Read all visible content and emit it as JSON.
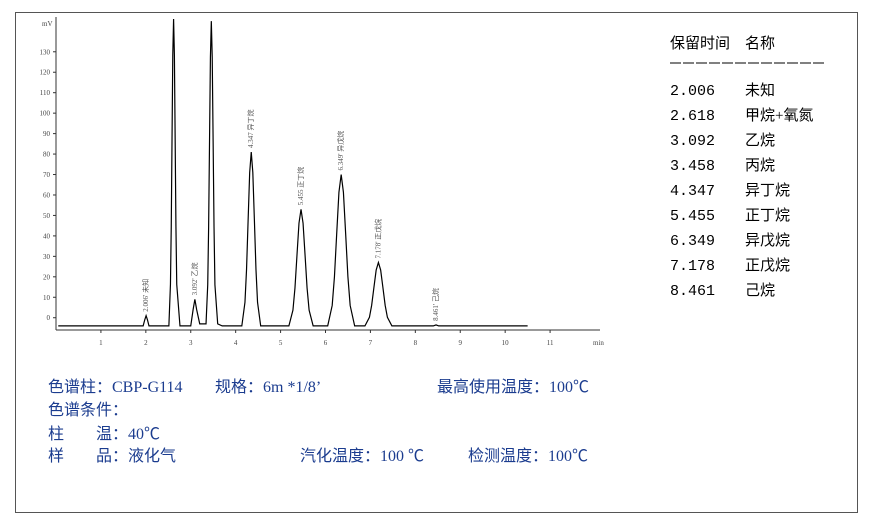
{
  "chart_data": {
    "type": "line",
    "y_label": "mV",
    "x_label": "min",
    "color": "#000000",
    "xlim": [
      0,
      12
    ],
    "ylim": [
      -6,
      147
    ],
    "xticks": [
      1,
      2,
      3,
      4,
      5,
      6,
      7,
      8,
      9,
      10,
      11
    ],
    "yticks": [
      0,
      10,
      20,
      30,
      40,
      50,
      60,
      70,
      80,
      90,
      100,
      110,
      120,
      130
    ],
    "x": [
      0.05,
      1.94,
      1.976,
      2.006,
      2.036,
      2.07,
      2.513,
      2.548,
      2.566,
      2.583,
      2.6,
      2.618,
      2.636,
      2.653,
      2.67,
      2.688,
      2.76,
      3.0,
      3.052,
      3.092,
      3.132,
      3.2,
      3.34,
      3.378,
      3.398,
      3.418,
      3.438,
      3.458,
      3.478,
      3.498,
      3.518,
      3.538,
      3.6,
      3.7,
      4.137,
      4.207,
      4.242,
      4.277,
      4.312,
      4.347,
      4.382,
      4.417,
      4.452,
      4.487,
      4.557,
      5.185,
      5.275,
      5.32,
      5.365,
      5.41,
      5.455,
      5.5,
      5.545,
      5.59,
      5.635,
      5.725,
      6.049,
      6.149,
      6.199,
      6.249,
      6.299,
      6.349,
      6.399,
      6.449,
      6.499,
      6.549,
      6.649,
      6.878,
      6.978,
      7.028,
      7.078,
      7.128,
      7.178,
      7.228,
      7.278,
      7.328,
      7.378,
      7.478,
      8.4,
      8.461,
      8.52,
      10.5
    ],
    "values": [
      -4,
      -4,
      -1,
      1,
      -1,
      -4,
      -4,
      16.3,
      44.8,
      87.1,
      128.3,
      146,
      128.3,
      87.1,
      44.8,
      16.3,
      -4,
      -4,
      3.9,
      9,
      3.9,
      -3,
      -3,
      16.1,
      44.4,
      86.4,
      127.4,
      145,
      127.4,
      86.4,
      44.4,
      16.1,
      -3,
      -4,
      -4,
      7.5,
      23.6,
      47.6,
      71,
      81,
      71,
      47.6,
      23.6,
      7.5,
      -4,
      -4,
      3.7,
      14.5,
      30.6,
      46.3,
      53,
      46.3,
      30.6,
      14.5,
      3.7,
      -4,
      -4,
      6,
      20,
      40.9,
      61.3,
      70,
      61.3,
      40.9,
      20,
      6,
      -4,
      -4,
      0.2,
      6.1,
      14.8,
      23.3,
      27,
      23.3,
      14.8,
      6.1,
      0.2,
      -4,
      -4,
      -3.5,
      -4,
      -4
    ],
    "annotations": [
      {
        "x": 2.006,
        "text": "2.006' 未知"
      },
      {
        "x": 3.092,
        "text": "3.092' 乙烷"
      },
      {
        "x": 4.347,
        "text": "4.347 异丁烷"
      },
      {
        "x": 5.455,
        "text": "5.455 正丁烷"
      },
      {
        "x": 6.349,
        "text": "6.349' 异戊烷"
      },
      {
        "x": 7.178,
        "text": "7.178' 正戊烷"
      },
      {
        "x": 8.461,
        "text": "8.461' 己烷"
      }
    ]
  },
  "peak_table": {
    "headers": [
      "保留时间",
      "名称"
    ],
    "rows": [
      [
        "2.006",
        "未知"
      ],
      [
        "2.618",
        "甲烷+氧氮"
      ],
      [
        "3.092",
        "乙烷"
      ],
      [
        "3.458",
        "丙烷"
      ],
      [
        "4.347",
        "异丁烷"
      ],
      [
        "5.455",
        "正丁烷"
      ],
      [
        "6.349",
        "异戊烷"
      ],
      [
        "7.178",
        "正戊烷"
      ],
      [
        "8.461",
        "己烷"
      ]
    ]
  },
  "conditions": {
    "column": "色谱柱：CBP-G114",
    "spec": "规格：6m *1/8’",
    "max_temp": "最高使用温度：100℃",
    "heading": "色谱条件：",
    "column_temp": "柱　　温：40℃",
    "sample": "样　　品：液化气",
    "vaporizer_temp": "汽化温度：100 ℃",
    "detector_temp": "检测温度：100℃"
  }
}
